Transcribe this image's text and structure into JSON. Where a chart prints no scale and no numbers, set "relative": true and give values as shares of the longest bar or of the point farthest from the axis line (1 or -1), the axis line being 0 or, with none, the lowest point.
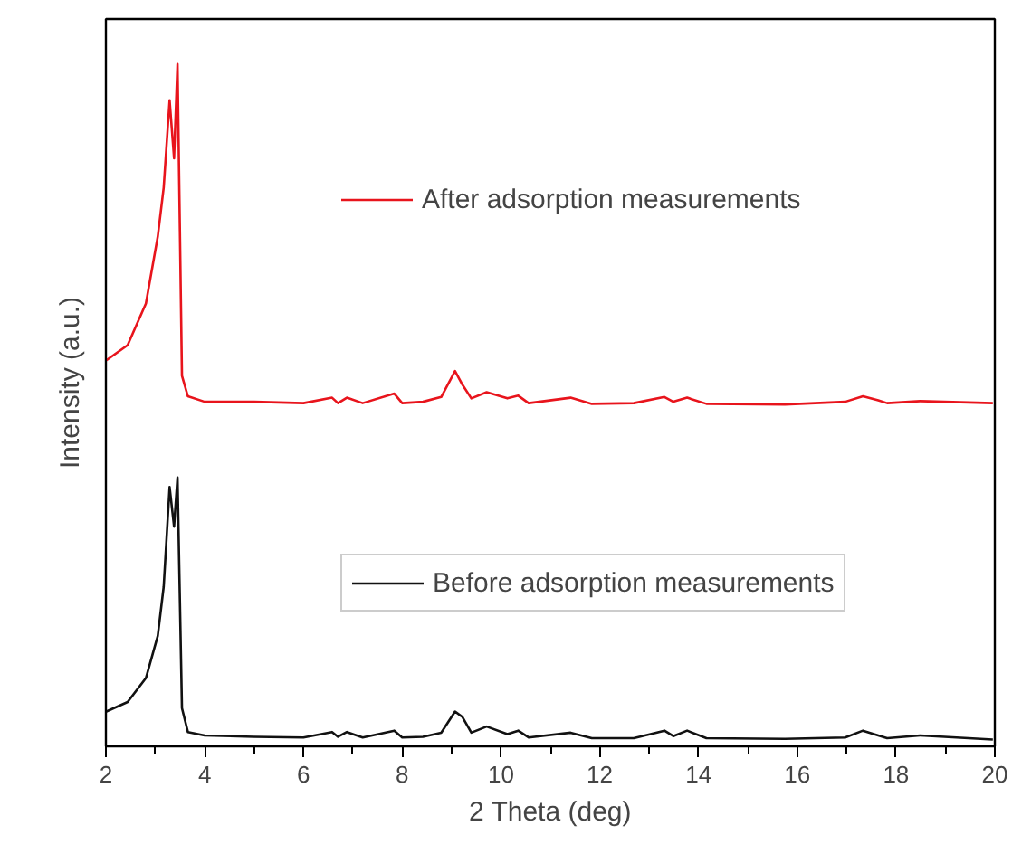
{
  "chart_data": {
    "type": "line",
    "relative": true,
    "xlabel": "2 Theta (deg)",
    "ylabel": "Intensity (a.u.)",
    "xlim": [
      2,
      20
    ],
    "xticks": [
      2,
      4,
      6,
      8,
      10,
      12,
      14,
      16,
      18,
      20
    ],
    "grid": false,
    "legend": "right",
    "marker": "none",
    "line_style": "solid",
    "tick_labels": "x",
    "series": [
      {
        "name": "After adsorption measurements",
        "color": "#e8141c",
        "x": [
          2.01,
          2.44,
          2.81,
          3.05,
          3.17,
          3.29,
          3.38,
          3.45,
          3.54,
          3.66,
          4.0,
          5.0,
          6.0,
          6.58,
          6.7,
          6.88,
          7.2,
          7.84,
          8.0,
          8.42,
          8.79,
          9.07,
          9.22,
          9.4,
          9.71,
          10.13,
          10.35,
          10.56,
          11.41,
          11.84,
          12.69,
          13.31,
          13.49,
          13.77,
          14.16,
          15.75,
          16.97,
          17.33,
          17.64,
          17.82,
          18.49,
          19.96
        ],
        "values": [
          0.566,
          0.588,
          0.649,
          0.747,
          0.819,
          0.947,
          0.862,
          1,
          0.543,
          0.513,
          0.505,
          0.505,
          0.503,
          0.511,
          0.503,
          0.511,
          0.503,
          0.517,
          0.503,
          0.505,
          0.512,
          0.55,
          0.53,
          0.51,
          0.519,
          0.51,
          0.514,
          0.503,
          0.511,
          0.502,
          0.503,
          0.512,
          0.505,
          0.511,
          0.502,
          0.501,
          0.505,
          0.513,
          0.507,
          0.503,
          0.506,
          0.503
        ]
      },
      {
        "name": "Before adsorption measurements",
        "color": "#111111",
        "x": [
          2.01,
          2.44,
          2.81,
          3.05,
          3.17,
          3.29,
          3.38,
          3.45,
          3.54,
          3.66,
          4.0,
          5.0,
          6.0,
          6.58,
          6.7,
          6.88,
          7.2,
          7.84,
          8.0,
          8.42,
          8.79,
          9.07,
          9.22,
          9.4,
          9.71,
          10.13,
          10.35,
          10.56,
          11.41,
          11.84,
          12.69,
          13.31,
          13.49,
          13.77,
          14.16,
          15.75,
          16.97,
          17.33,
          17.64,
          17.82,
          18.49,
          19.96
        ],
        "values": [
          0.051,
          0.065,
          0.1,
          0.162,
          0.234,
          0.38,
          0.322,
          0.394,
          0.056,
          0.021,
          0.016,
          0.014,
          0.013,
          0.021,
          0.014,
          0.021,
          0.013,
          0.023,
          0.013,
          0.014,
          0.02,
          0.051,
          0.043,
          0.02,
          0.029,
          0.018,
          0.023,
          0.013,
          0.02,
          0.012,
          0.012,
          0.023,
          0.015,
          0.023,
          0.012,
          0.011,
          0.013,
          0.023,
          0.016,
          0.012,
          0.016,
          0.01
        ]
      }
    ]
  }
}
